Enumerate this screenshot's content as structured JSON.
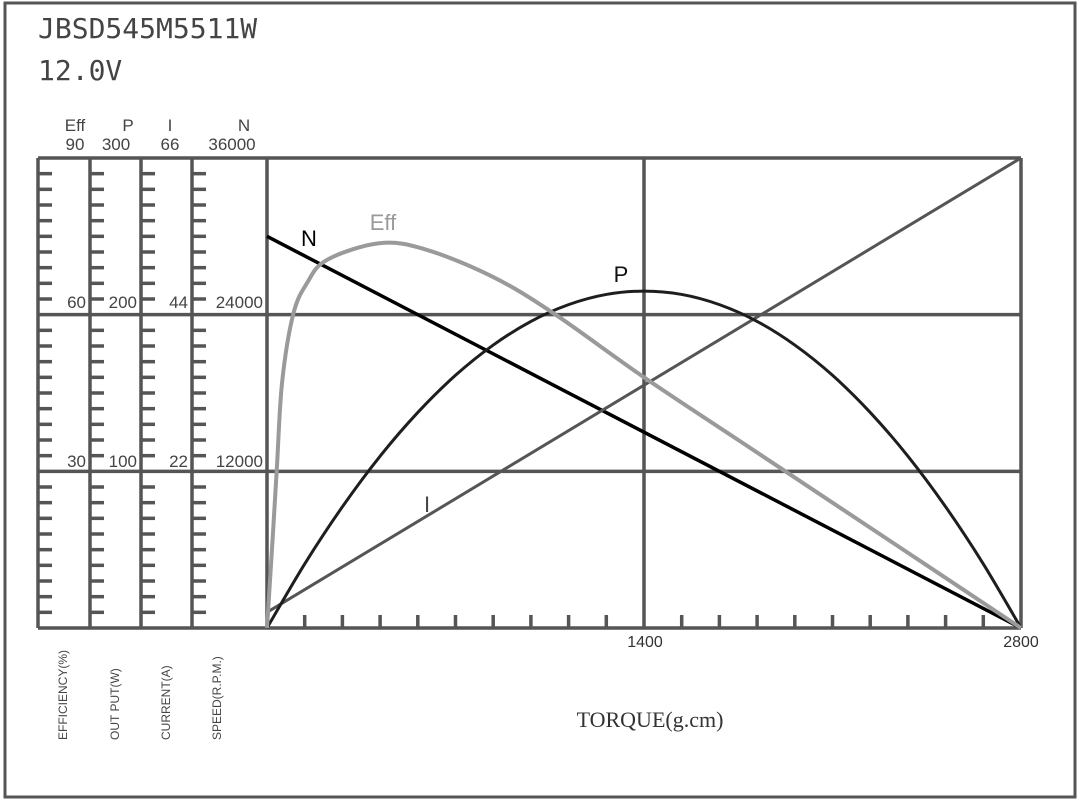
{
  "title": "JBSD545M5511W",
  "voltage": "12.0V",
  "colors": {
    "frame": "#555555",
    "N": "#000000",
    "P": "#1e1e1e",
    "I": "#555555",
    "Eff": "#9a9a9a"
  },
  "chart_data": {
    "type": "line",
    "title": "JBSD545M5511W",
    "subtitle": "12.0V",
    "xlabel": "TORQUE(g.cm)",
    "xlim": [
      0,
      2800
    ],
    "x_tick_labels": [
      "1400",
      "2800"
    ],
    "x_ticks": [
      1400,
      2800
    ],
    "grid": true,
    "y_axes": [
      {
        "key": "Eff",
        "header": "Eff",
        "label": "EFFICIENCY(%)",
        "max": 90,
        "tick_labels": [
          "90",
          "60",
          "30"
        ]
      },
      {
        "key": "P",
        "header": "P",
        "label": "OUT PUT(W)",
        "max": 300,
        "tick_labels": [
          "300",
          "200",
          "100"
        ]
      },
      {
        "key": "I",
        "header": "I",
        "label": "CURRENT(A)",
        "max": 66,
        "tick_labels": [
          "66",
          "44",
          "22"
        ]
      },
      {
        "key": "N",
        "header": "N",
        "label": "SPEED(R.P.M.)",
        "max": 36000,
        "tick_labels": [
          "36000",
          "24000",
          "12000"
        ]
      }
    ],
    "series": [
      {
        "name": "N",
        "axis": "N",
        "x": [
          0,
          2800
        ],
        "y": [
          30000,
          0
        ]
      },
      {
        "name": "I",
        "axis": "I",
        "x": [
          0,
          2800
        ],
        "y": [
          2.2,
          66
        ]
      },
      {
        "name": "P",
        "axis": "P",
        "x": [
          0,
          140,
          280,
          420,
          560,
          700,
          840,
          980,
          1120,
          1260,
          1400,
          1540,
          1680,
          1820,
          1960,
          2100,
          2240,
          2380,
          2520,
          2660,
          2800
        ],
        "y": [
          0,
          40.9,
          77.4,
          109.7,
          137.6,
          161.3,
          180.6,
          195.7,
          206.4,
          212.9,
          215,
          212.9,
          206.4,
          195.7,
          180.6,
          161.3,
          137.6,
          109.7,
          77.4,
          40.9,
          0
        ]
      },
      {
        "name": "Eff",
        "axis": "Eff",
        "x": [
          0,
          22,
          37,
          56,
          97,
          148,
          223,
          420,
          594,
          840,
          1063,
          1400,
          1750,
          2100,
          2450,
          2800
        ],
        "y": [
          0,
          18,
          31,
          47,
          60,
          66,
          70.5,
          73.7,
          72.4,
          67.2,
          60.3,
          48,
          36,
          24,
          12,
          0
        ]
      }
    ]
  }
}
